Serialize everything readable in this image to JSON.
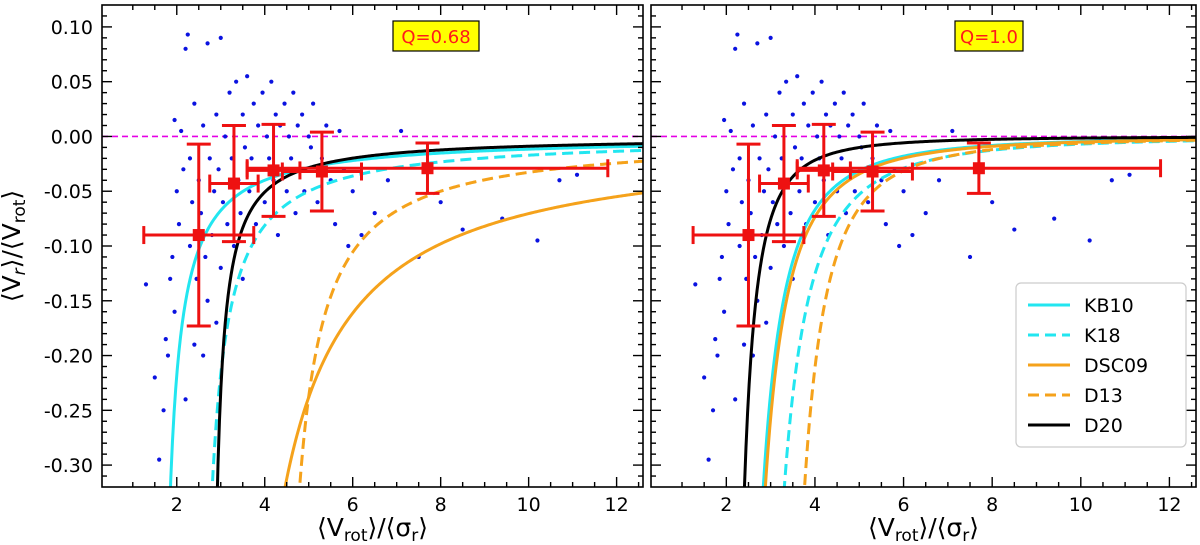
{
  "chart_data": [
    {
      "type": "scatter",
      "panel": "left",
      "xlabel": "⟨V_rot⟩/⟨σ_r⟩",
      "ylabel": "⟨V_r⟩/⟨V_rot⟩",
      "xlim": [
        0.3,
        12.6
      ],
      "ylim": [
        -0.32,
        0.12
      ],
      "xticks": [
        2,
        4,
        6,
        8,
        10,
        12
      ],
      "yticks": [
        0.1,
        0.05,
        0.0,
        -0.05,
        -0.1,
        -0.15,
        -0.2,
        -0.25,
        -0.3
      ],
      "annotation": "Q=0.68",
      "reference_line": {
        "y": 0.0,
        "color": "#e600e6"
      },
      "scatter_points": [
        [
          1.3,
          -0.135
        ],
        [
          1.5,
          -0.22
        ],
        [
          1.6,
          -0.295
        ],
        [
          1.7,
          -0.25
        ],
        [
          1.75,
          -0.185
        ],
        [
          1.8,
          -0.2
        ],
        [
          1.85,
          -0.13
        ],
        [
          1.9,
          -0.11
        ],
        [
          1.95,
          -0.16
        ],
        [
          1.95,
          0.015
        ],
        [
          2.0,
          -0.05
        ],
        [
          2.05,
          -0.08
        ],
        [
          2.1,
          0.005
        ],
        [
          2.15,
          -0.03
        ],
        [
          2.2,
          0.08
        ],
        [
          2.2,
          -0.24
        ],
        [
          2.25,
          0.093
        ],
        [
          2.3,
          -0.02
        ],
        [
          2.3,
          -0.1
        ],
        [
          2.35,
          -0.06
        ],
        [
          2.4,
          0.03
        ],
        [
          2.45,
          -0.13
        ],
        [
          2.5,
          -0.04
        ],
        [
          2.55,
          -0.07
        ],
        [
          2.6,
          0.01
        ],
        [
          2.65,
          -0.11
        ],
        [
          2.7,
          -0.15
        ],
        [
          2.7,
          0.085
        ],
        [
          2.75,
          -0.02
        ],
        [
          2.8,
          -0.09
        ],
        [
          2.85,
          -0.05
        ],
        [
          2.9,
          0.02
        ],
        [
          2.9,
          -0.17
        ],
        [
          2.95,
          -0.03
        ],
        [
          3.0,
          -0.12
        ],
        [
          3.0,
          0.09
        ],
        [
          3.05,
          -0.06
        ],
        [
          3.1,
          0.0
        ],
        [
          3.15,
          -0.08
        ],
        [
          3.2,
          0.04
        ],
        [
          3.25,
          -0.02
        ],
        [
          3.3,
          -0.1
        ],
        [
          3.35,
          0.05
        ],
        [
          3.4,
          -0.04
        ],
        [
          3.45,
          -0.07
        ],
        [
          3.5,
          0.02
        ],
        [
          3.5,
          -0.13
        ],
        [
          3.55,
          -0.01
        ],
        [
          3.6,
          0.055
        ],
        [
          3.65,
          -0.05
        ],
        [
          3.7,
          -0.02
        ],
        [
          3.75,
          0.03
        ],
        [
          3.8,
          -0.08
        ],
        [
          3.85,
          0.01
        ],
        [
          3.9,
          -0.03
        ],
        [
          3.95,
          0.04
        ],
        [
          4.0,
          -0.06
        ],
        [
          4.05,
          0.0
        ],
        [
          4.1,
          -0.02
        ],
        [
          4.15,
          0.05
        ],
        [
          4.2,
          -0.04
        ],
        [
          4.25,
          0.02
        ],
        [
          4.3,
          -0.09
        ],
        [
          4.35,
          0.01
        ],
        [
          4.4,
          -0.03
        ],
        [
          4.45,
          0.03
        ],
        [
          4.5,
          -0.05
        ],
        [
          4.55,
          0.0
        ],
        [
          4.6,
          -0.02
        ],
        [
          4.65,
          0.04
        ],
        [
          4.7,
          -0.07
        ],
        [
          4.75,
          0.01
        ],
        [
          4.8,
          -0.03
        ],
        [
          4.85,
          0.02
        ],
        [
          4.9,
          -0.05
        ],
        [
          5.0,
          0.0
        ],
        [
          5.05,
          -0.01
        ],
        [
          5.1,
          0.03
        ],
        [
          5.2,
          -0.06
        ],
        [
          5.3,
          -0.02
        ],
        [
          5.4,
          0.01
        ],
        [
          5.5,
          -0.04
        ],
        [
          5.6,
          -0.08
        ],
        [
          5.7,
          0.005
        ],
        [
          5.8,
          -0.03
        ],
        [
          5.9,
          -0.1
        ],
        [
          6.0,
          -0.05
        ],
        [
          6.2,
          -0.09
        ],
        [
          6.5,
          -0.07
        ],
        [
          6.8,
          -0.04
        ],
        [
          7.1,
          0.005
        ],
        [
          7.5,
          -0.11
        ],
        [
          8.0,
          -0.06
        ],
        [
          8.5,
          -0.085
        ],
        [
          9.4,
          -0.075
        ],
        [
          10.2,
          -0.095
        ],
        [
          10.7,
          -0.04
        ],
        [
          11.1,
          -0.035
        ],
        [
          2.6,
          -0.2
        ],
        [
          2.4,
          -0.19
        ]
      ],
      "error_points": [
        {
          "x": 2.5,
          "y": -0.09,
          "xerr": 1.25,
          "yerr": 0.083
        },
        {
          "x": 3.3,
          "y": -0.043,
          "xerr": 0.55,
          "yerr": 0.053
        },
        {
          "x": 4.2,
          "y": -0.031,
          "xerr": 0.6,
          "yerr": 0.042
        },
        {
          "x": 5.3,
          "y": -0.032,
          "xerr": 0.9,
          "yerr": 0.036
        },
        {
          "x": 7.7,
          "y": -0.029,
          "xerr": 4.1,
          "yerr": 0.023
        }
      ],
      "curves": [
        {
          "name": "KB10",
          "color": "#22e6f0",
          "dash": "solid",
          "x0": 1.55,
          "A": 0.098,
          "p": 1.0
        },
        {
          "name": "K18",
          "color": "#22e6f0",
          "dash": "dashed",
          "x0": 2.4,
          "A": 0.13,
          "p": 1.0
        },
        {
          "name": "DSC09",
          "color": "#f5a21b",
          "dash": "solid",
          "x0": 2.9,
          "A": 0.5,
          "p": 1.0
        },
        {
          "name": "D13",
          "color": "#f5a21b",
          "dash": "dashed",
          "x0": 4.2,
          "A": 0.19,
          "p": 1.0
        },
        {
          "name": "D20",
          "color": "#000000",
          "dash": "solid",
          "x0": 2.72,
          "A": 0.065,
          "p": 1.0
        }
      ]
    },
    {
      "type": "scatter",
      "panel": "right",
      "xlabel": "⟨V_rot⟩/⟨σ_r⟩",
      "ylabel": "",
      "xlim": [
        0.3,
        12.6
      ],
      "ylim": [
        -0.32,
        0.12
      ],
      "xticks": [
        2,
        4,
        6,
        8,
        10,
        12
      ],
      "annotation": "Q=1.0",
      "reference_line": {
        "y": 0.0,
        "color": "#e600e6"
      },
      "legend_position": "lower-right",
      "legend": [
        "KB10",
        "K18",
        "DSC09",
        "D13",
        "D20"
      ],
      "scatter_points": [
        [
          1.3,
          -0.135
        ],
        [
          1.5,
          -0.22
        ],
        [
          1.6,
          -0.295
        ],
        [
          1.7,
          -0.25
        ],
        [
          1.75,
          -0.185
        ],
        [
          1.8,
          -0.2
        ],
        [
          1.85,
          -0.13
        ],
        [
          1.9,
          -0.11
        ],
        [
          1.95,
          -0.16
        ],
        [
          1.95,
          0.015
        ],
        [
          2.0,
          -0.05
        ],
        [
          2.05,
          -0.08
        ],
        [
          2.1,
          0.005
        ],
        [
          2.15,
          -0.03
        ],
        [
          2.2,
          0.08
        ],
        [
          2.2,
          -0.24
        ],
        [
          2.25,
          0.093
        ],
        [
          2.3,
          -0.02
        ],
        [
          2.3,
          -0.1
        ],
        [
          2.35,
          -0.06
        ],
        [
          2.4,
          0.03
        ],
        [
          2.45,
          -0.13
        ],
        [
          2.5,
          -0.04
        ],
        [
          2.55,
          -0.07
        ],
        [
          2.6,
          0.01
        ],
        [
          2.65,
          -0.11
        ],
        [
          2.7,
          -0.15
        ],
        [
          2.7,
          0.085
        ],
        [
          2.75,
          -0.02
        ],
        [
          2.8,
          -0.09
        ],
        [
          2.85,
          -0.05
        ],
        [
          2.9,
          0.02
        ],
        [
          2.9,
          -0.17
        ],
        [
          2.95,
          -0.03
        ],
        [
          3.0,
          -0.12
        ],
        [
          3.0,
          0.09
        ],
        [
          3.05,
          -0.06
        ],
        [
          3.1,
          0.0
        ],
        [
          3.15,
          -0.08
        ],
        [
          3.2,
          0.04
        ],
        [
          3.25,
          -0.02
        ],
        [
          3.3,
          -0.1
        ],
        [
          3.35,
          0.05
        ],
        [
          3.4,
          -0.04
        ],
        [
          3.45,
          -0.07
        ],
        [
          3.5,
          0.02
        ],
        [
          3.5,
          -0.13
        ],
        [
          3.55,
          -0.01
        ],
        [
          3.6,
          0.055
        ],
        [
          3.65,
          -0.05
        ],
        [
          3.7,
          -0.02
        ],
        [
          3.75,
          0.03
        ],
        [
          3.8,
          -0.08
        ],
        [
          3.85,
          0.01
        ],
        [
          3.9,
          -0.03
        ],
        [
          3.95,
          0.04
        ],
        [
          4.0,
          -0.06
        ],
        [
          4.05,
          0.0
        ],
        [
          4.1,
          -0.02
        ],
        [
          4.15,
          0.05
        ],
        [
          4.2,
          -0.04
        ],
        [
          4.25,
          0.02
        ],
        [
          4.3,
          -0.09
        ],
        [
          4.35,
          0.01
        ],
        [
          4.4,
          -0.03
        ],
        [
          4.45,
          0.03
        ],
        [
          4.5,
          -0.05
        ],
        [
          4.55,
          0.0
        ],
        [
          4.6,
          -0.02
        ],
        [
          4.65,
          0.04
        ],
        [
          4.7,
          -0.07
        ],
        [
          4.75,
          0.01
        ],
        [
          4.8,
          -0.03
        ],
        [
          4.85,
          0.02
        ],
        [
          4.9,
          -0.05
        ],
        [
          5.0,
          0.0
        ],
        [
          5.05,
          -0.01
        ],
        [
          5.1,
          0.03
        ],
        [
          5.2,
          -0.06
        ],
        [
          5.3,
          -0.02
        ],
        [
          5.4,
          0.01
        ],
        [
          5.5,
          -0.04
        ],
        [
          5.6,
          -0.08
        ],
        [
          5.7,
          0.005
        ],
        [
          5.8,
          -0.03
        ],
        [
          5.9,
          -0.1
        ],
        [
          6.0,
          -0.05
        ],
        [
          6.2,
          -0.09
        ],
        [
          6.5,
          -0.07
        ],
        [
          6.8,
          -0.04
        ],
        [
          7.1,
          0.005
        ],
        [
          7.5,
          -0.11
        ],
        [
          8.0,
          -0.06
        ],
        [
          8.5,
          -0.085
        ],
        [
          9.4,
          -0.075
        ],
        [
          10.2,
          -0.095
        ],
        [
          10.7,
          -0.04
        ],
        [
          11.1,
          -0.035
        ],
        [
          2.6,
          -0.2
        ],
        [
          2.4,
          -0.19
        ]
      ],
      "error_points": [
        {
          "x": 2.5,
          "y": -0.09,
          "xerr": 1.25,
          "yerr": 0.083
        },
        {
          "x": 3.3,
          "y": -0.043,
          "xerr": 0.55,
          "yerr": 0.053
        },
        {
          "x": 4.2,
          "y": -0.031,
          "xerr": 0.6,
          "yerr": 0.042
        },
        {
          "x": 5.3,
          "y": -0.032,
          "xerr": 0.9,
          "yerr": 0.036
        },
        {
          "x": 7.7,
          "y": -0.029,
          "xerr": 4.1,
          "yerr": 0.023
        }
      ],
      "curves": [
        {
          "name": "KB10",
          "color": "#22e6f0",
          "dash": "solid",
          "x0": 1.85,
          "A": 0.31,
          "p": 2.0
        },
        {
          "name": "K18",
          "color": "#22e6f0",
          "dash": "dashed",
          "x0": 2.15,
          "A": 0.43,
          "p": 2.0
        },
        {
          "name": "DSC09",
          "color": "#f5a21b",
          "dash": "solid",
          "x0": 1.85,
          "A": 0.34,
          "p": 2.0
        },
        {
          "name": "D13",
          "color": "#f5a21b",
          "dash": "dashed",
          "x0": 2.75,
          "A": 0.33,
          "p": 2.0
        },
        {
          "name": "D20",
          "color": "#000000",
          "dash": "solid",
          "x0": 1.85,
          "A": 0.1,
          "p": 2.0
        }
      ]
    }
  ]
}
